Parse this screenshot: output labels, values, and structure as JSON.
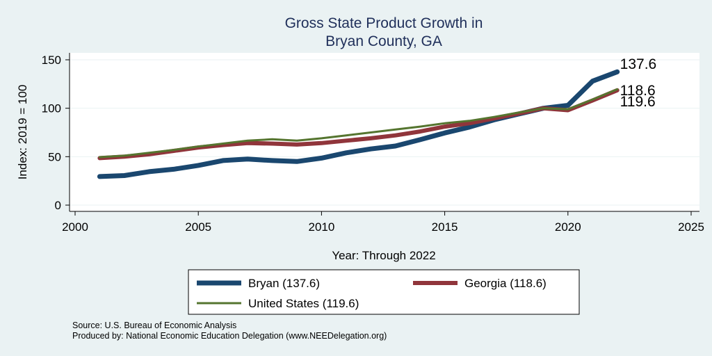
{
  "chart_data": {
    "type": "line",
    "title_line1": "Gross State Product Growth in",
    "title_line2": "Bryan County, GA",
    "xlabel": "Year: Through 2022",
    "ylabel": "Index: 2019 = 100",
    "xlim": [
      2000,
      2025
    ],
    "ylim": [
      0,
      150
    ],
    "xticks": [
      "2000",
      "2005",
      "2010",
      "2015",
      "2020",
      "2025"
    ],
    "yticks": [
      "0",
      "50",
      "100",
      "150"
    ],
    "grid": true,
    "legend_position": "bottom",
    "x": [
      2001,
      2002,
      2003,
      2004,
      2005,
      2006,
      2007,
      2008,
      2009,
      2010,
      2011,
      2012,
      2013,
      2014,
      2015,
      2016,
      2017,
      2018,
      2019,
      2020,
      2021,
      2022
    ],
    "series": [
      {
        "name": "Bryan",
        "legend_label": "Bryan  (137.6)",
        "end_label": "137.6",
        "color": "#1a476f",
        "values": [
          29.5,
          30.5,
          34.5,
          37,
          41,
          46,
          47.5,
          46,
          45,
          48.5,
          54,
          58,
          61,
          67.5,
          74.5,
          80.5,
          88,
          94,
          100,
          103,
          128,
          137.6
        ]
      },
      {
        "name": "Georgia",
        "legend_label": "Georgia (118.6)",
        "end_label": "118.6",
        "color": "#90353b",
        "values": [
          48.5,
          50,
          52.5,
          56,
          59.5,
          62,
          64,
          63.5,
          62.5,
          64,
          66.5,
          69,
          72,
          76,
          81,
          84.5,
          89.5,
          94.5,
          100,
          98,
          108,
          118.6
        ]
      },
      {
        "name": "United States",
        "legend_label": "United States (119.6)",
        "end_label": "119.6",
        "color": "#55752f",
        "values": [
          49.5,
          51,
          54,
          57,
          60.5,
          63.5,
          66.5,
          68,
          66.5,
          69,
          72,
          75,
          78,
          81,
          84.5,
          87,
          91,
          95.5,
          100,
          99,
          109,
          119.6
        ]
      }
    ],
    "notes": [
      "Source: U.S. Bureau of Economic Analysis",
      "Produced by: National Economic Education Delegation (www.NEEDelegation.org)"
    ]
  }
}
